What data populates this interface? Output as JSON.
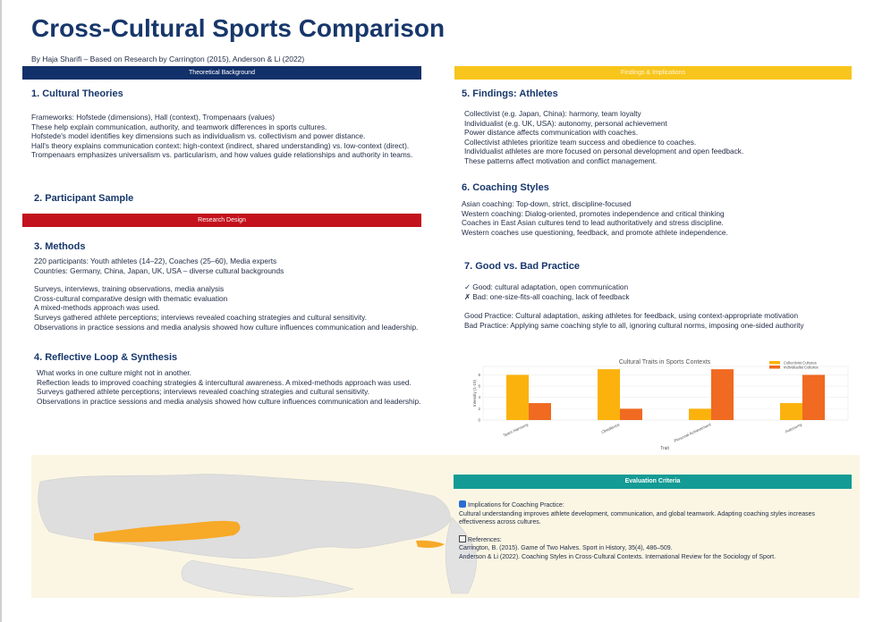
{
  "page": {
    "title": "Cross-Cultural Sports Comparison",
    "byline": "By Haja Sharifi – Based on Research by Carrington (2015), Anderson & Li (2022)"
  },
  "bands": {
    "theoretical": "Theoretical Background",
    "findings": "Findings & Implications",
    "research": "Research Design",
    "evaluation": "Evaluation Criteria"
  },
  "sections": {
    "cultural_theories": {
      "heading": "1. Cultural Theories",
      "lines": [
        "Frameworks: Hofstede (dimensions), Hall (context), Trompenaars (values)",
        "These help explain communication, authority, and teamwork differences in sports cultures.",
        "Hofstede's model identifies key dimensions such as individualism vs. collectivism and power distance.",
        "Hall's theory explains communication context: high-context (indirect, shared understanding) vs. low-context (direct).",
        "Trompenaars emphasizes universalism vs. particularism, and how values guide relationships and authority in teams."
      ]
    },
    "participant_sample": {
      "heading": "2. Participant Sample"
    },
    "methods": {
      "heading": "3. Methods",
      "lines_a": [
        "220 participants: Youth athletes (14–22), Coaches (25–60), Media experts",
        "Countries: Germany, China, Japan, UK, USA – diverse cultural backgrounds"
      ],
      "lines_b": [
        "Surveys, interviews, training observations, media analysis",
        "Cross-cultural comparative design with thematic evaluation",
        "A mixed-methods approach was used.",
        "Surveys gathered athlete perceptions; interviews revealed coaching strategies and cultural sensitivity.",
        "Observations in practice sessions and media analysis showed how culture influences communication and leadership."
      ]
    },
    "reflective": {
      "heading": "4. Reflective Loop & Synthesis",
      "lines": [
        "What works in one culture might not in another.",
        "Reflection leads to improved coaching strategies & intercultural awareness. A mixed-methods approach was used.",
        "Surveys gathered athlete perceptions; interviews revealed coaching strategies and cultural sensitivity.",
        "Observations in practice sessions and media analysis showed how culture influences communication and leadership."
      ]
    },
    "findings_athletes": {
      "heading": "5. Findings: Athletes",
      "lines": [
        "Collectivist (e.g. Japan, China): harmony, team loyalty",
        "Individualist (e.g. UK, USA): autonomy, personal achievement",
        "Power distance affects communication with coaches.",
        "Collectivist athletes prioritize team success and obedience to coaches.",
        "Individualist athletes are more focused on personal development and open feedback.",
        "These patterns affect motivation and conflict management."
      ]
    },
    "coaching_styles": {
      "heading": "6. Coaching Styles",
      "lines": [
        "Asian coaching: Top-down, strict, discipline-focused",
        "Western coaching: Dialog-oriented, promotes independence and critical thinking",
        "Coaches in East Asian cultures tend to lead authoritatively and stress discipline.",
        "Western coaches use questioning, feedback, and promote athlete independence."
      ]
    },
    "good_bad": {
      "heading": "7. Good vs. Bad Practice",
      "lines_a": [
        "✓ Good: cultural adaptation, open communication",
        "✗ Bad: one-size-fits-all coaching, lack of feedback"
      ],
      "lines_b": [
        "Good Practice: Cultural adaptation, asking athletes for feedback, using context-appropriate motivation",
        "Bad Practice: Applying same coaching style to all, ignoring cultural norms, imposing one-sided authority"
      ]
    }
  },
  "evaluation": {
    "implications_title": "Implications for Coaching Practice:",
    "implications_text": "Cultural understanding improves athlete development, communication, and global teamwork. Adapting coaching styles increases effectiveness across cultures.",
    "references_title": "References:",
    "references": [
      "Carrington, B. (2015). Game of Two Halves. Sport in History, 35(4), 486–509.",
      "Anderson & Li (2022). Coaching Styles in Cross-Cultural Contexts. International Review for the Sociology of Sport."
    ],
    "icons": [
      "info-icon",
      "book-icon"
    ]
  },
  "chart_data": {
    "type": "bar",
    "title": "Cultural Traits in Sports Contexts",
    "xlabel": "Trait",
    "ylabel": "Intensity (1-10)",
    "categories": [
      "Team Harmony",
      "Obedience",
      "Personal Achievement",
      "Autonomy"
    ],
    "series": [
      {
        "name": "Collectivist Cultures",
        "color": "#fbb20c",
        "values": [
          8,
          9,
          2,
          3
        ]
      },
      {
        "name": "Individualist Cultures",
        "color": "#f06a21",
        "values": [
          3,
          2,
          9,
          8
        ]
      }
    ],
    "ylim": [
      0,
      9.5
    ],
    "yticks": [
      0,
      2,
      4,
      6,
      8
    ],
    "grid": true,
    "legend": "top-right"
  },
  "map": {
    "land_color": "#dedede",
    "highlight_color": "#f7a928",
    "background": "#fbf6e4"
  }
}
